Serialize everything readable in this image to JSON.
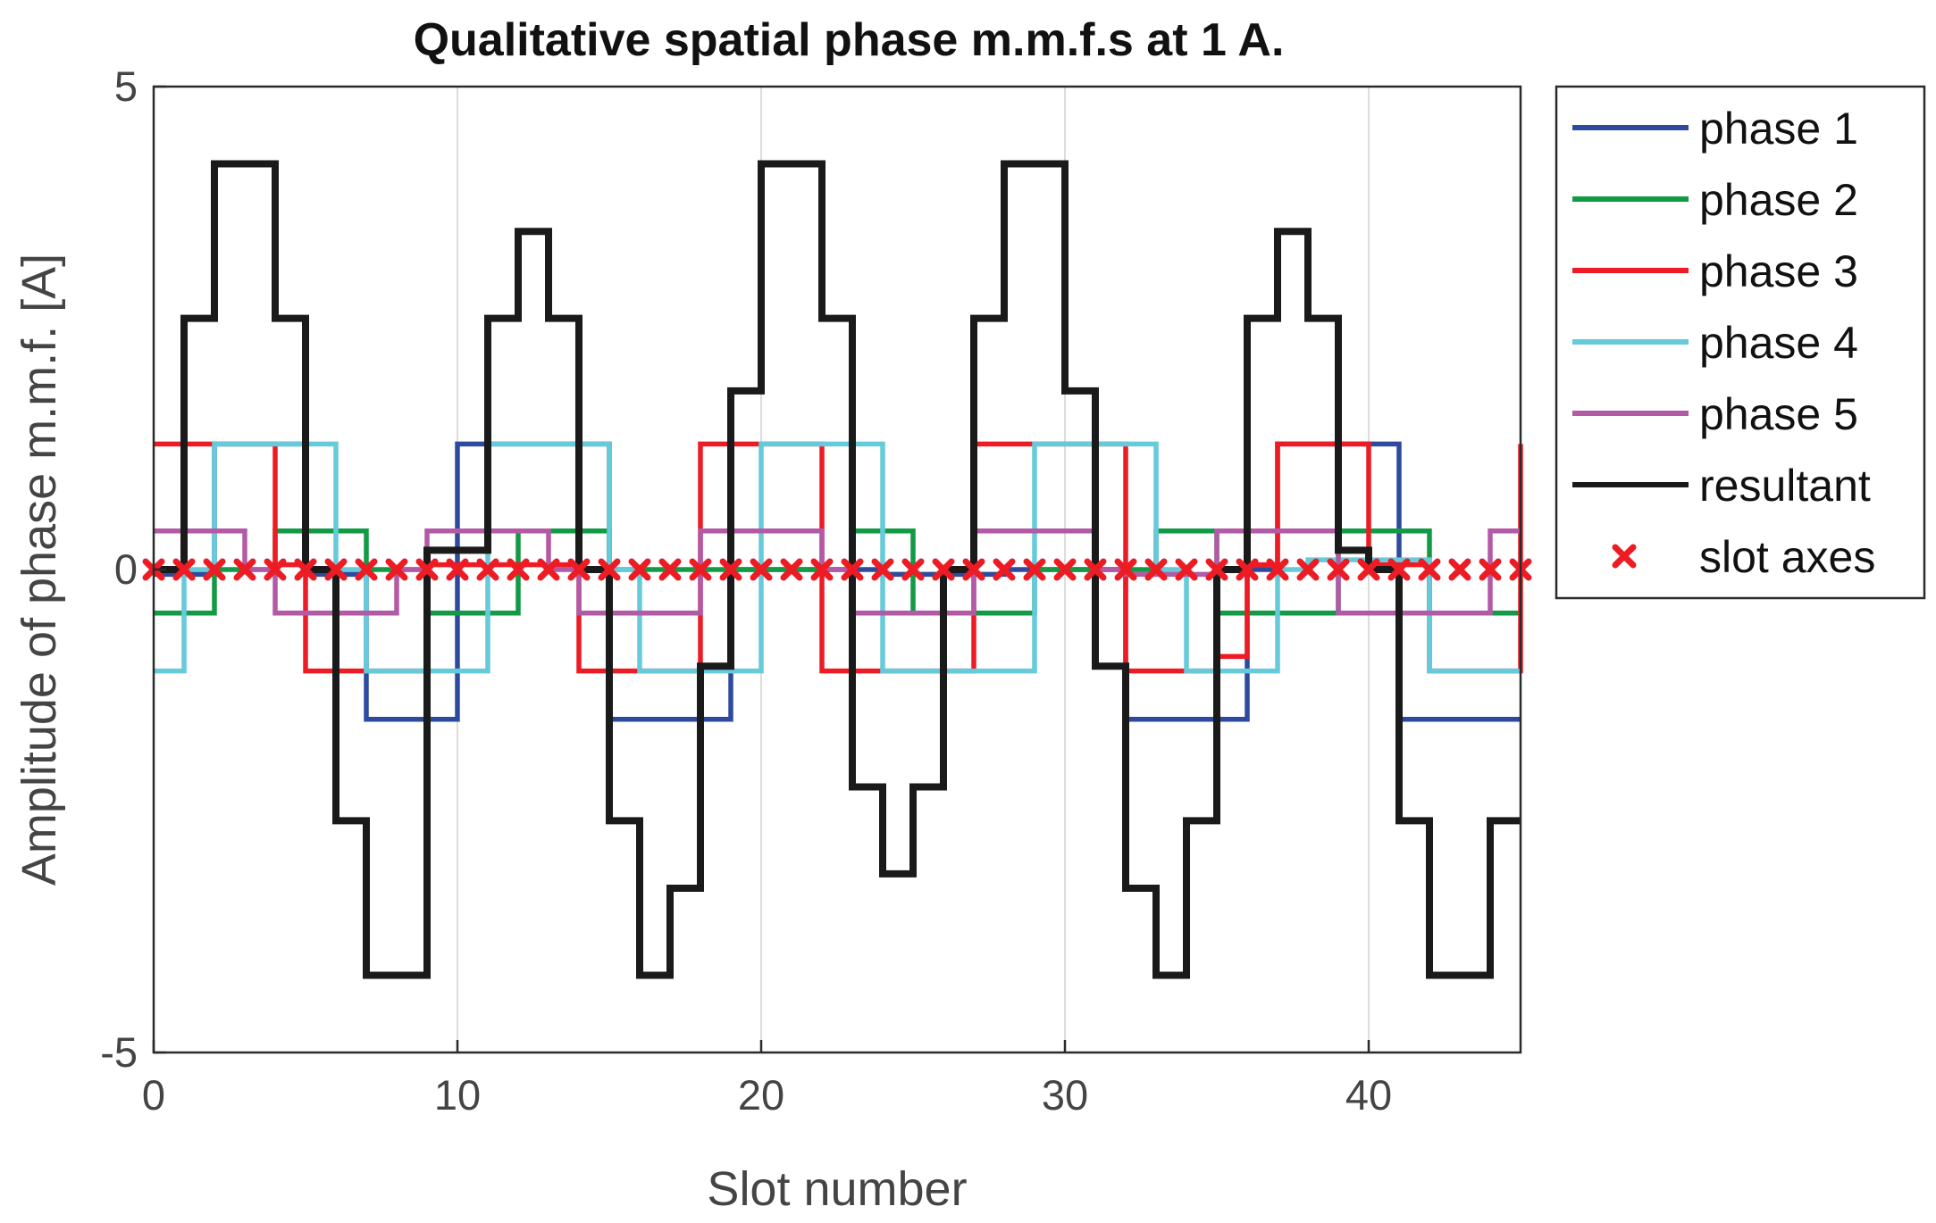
{
  "chart_data": {
    "type": "line",
    "title": "Qualitative spatial phase m.m.f.s at 1 A.",
    "xlabel": "Slot number",
    "ylabel": "Amplitude of phase m.m.f. [A]",
    "xlim": [
      0,
      45
    ],
    "ylim": [
      -5,
      5
    ],
    "xticks": [
      0,
      10,
      20,
      30,
      40
    ],
    "yticks": [
      -5,
      0,
      5
    ],
    "grid": "vertical",
    "legend_position": "outside-right",
    "step": "post",
    "x": [
      0,
      1,
      2,
      3,
      4,
      5,
      6,
      7,
      8,
      9,
      10,
      11,
      12,
      13,
      14,
      15,
      16,
      17,
      18,
      19,
      20,
      21,
      22,
      23,
      24,
      25,
      26,
      27,
      28,
      29,
      30,
      31,
      32,
      33,
      34,
      35,
      36,
      37,
      38,
      39,
      40,
      41,
      42,
      43,
      44,
      45
    ],
    "series": [
      {
        "name": "phase 1",
        "color": "#2e4a9e",
        "values": [
          -0.05,
          -0.05,
          1.3,
          1.3,
          1.3,
          -0.05,
          -0.05,
          -1.55,
          -1.55,
          -1.55,
          1.3,
          1.3,
          1.3,
          1.3,
          1.3,
          -1.55,
          -1.55,
          -1.55,
          -1.55,
          0,
          0,
          0,
          0,
          0,
          -0.05,
          -0.05,
          -0.05,
          -0.05,
          0,
          0,
          0,
          0,
          -1.55,
          -1.55,
          -1.55,
          -1.55,
          0,
          1.3,
          1.3,
          1.3,
          1.3,
          -1.55,
          -1.55,
          -1.55,
          -1.55,
          -1.55
        ]
      },
      {
        "name": "phase 2",
        "color": "#129a45",
        "values": [
          -0.45,
          -0.45,
          0,
          0,
          0.4,
          0.4,
          0.4,
          0,
          0,
          -0.45,
          -0.45,
          -0.45,
          0.4,
          0.4,
          0.4,
          0,
          0,
          0,
          0,
          0,
          0,
          0,
          0,
          0.4,
          0.4,
          -0.45,
          -0.45,
          -0.45,
          -0.45,
          0,
          0,
          0,
          0,
          0.4,
          0.4,
          -0.45,
          -0.45,
          -0.45,
          -0.45,
          0.4,
          0.4,
          0.4,
          -0.45,
          -0.45,
          -0.45,
          -0.45
        ]
      },
      {
        "name": "phase 3",
        "color": "#ed1c24",
        "values": [
          1.3,
          1.3,
          1.3,
          1.3,
          0.05,
          -1.05,
          -1.05,
          -1.05,
          -1.05,
          0.05,
          0.05,
          0.05,
          0.05,
          0.05,
          -1.05,
          -1.05,
          -1.05,
          -1.05,
          1.3,
          1.3,
          1.3,
          1.3,
          -1.05,
          -1.05,
          -1.05,
          -1.05,
          -1.05,
          1.3,
          1.3,
          1.3,
          1.3,
          1.3,
          -1.05,
          -1.05,
          -1.05,
          -0.9,
          0.05,
          1.3,
          1.3,
          1.3,
          0.05,
          0.05,
          -1.05,
          -1.05,
          -1.05,
          1.3
        ]
      },
      {
        "name": "phase 4",
        "color": "#66cadb",
        "values": [
          -1.05,
          0,
          1.3,
          1.3,
          1.3,
          1.3,
          0,
          -1.05,
          -1.05,
          -1.05,
          -1.05,
          1.3,
          1.3,
          1.3,
          1.3,
          0,
          -1.05,
          -1.05,
          -1.05,
          -1.05,
          1.3,
          1.3,
          1.3,
          1.3,
          -1.05,
          -1.05,
          -1.05,
          -1.05,
          -1.05,
          1.3,
          1.3,
          1.3,
          1.3,
          0,
          -1.05,
          -1.05,
          -1.05,
          0,
          0.1,
          0.1,
          0.1,
          0.1,
          -1.05,
          -1.05,
          -1.05,
          -1.05
        ]
      },
      {
        "name": "phase 5",
        "color": "#b35aa6",
        "values": [
          0.4,
          0.4,
          0.4,
          0,
          -0.45,
          -0.45,
          -0.45,
          -0.45,
          0,
          0.4,
          0.4,
          0.4,
          0.4,
          0,
          -0.45,
          -0.45,
          -0.45,
          -0.45,
          0.4,
          0.4,
          0.4,
          0.4,
          0,
          -0.45,
          -0.45,
          -0.45,
          -0.45,
          0.4,
          0.4,
          0.4,
          0.4,
          0,
          -0.05,
          -0.05,
          -0.05,
          0.4,
          0.4,
          0.4,
          0.4,
          -0.45,
          -0.45,
          -0.45,
          -0.45,
          -0.45,
          0.4,
          0.4
        ]
      },
      {
        "name": "resultant",
        "color": "#1a1a1a",
        "values": [
          0,
          2.6,
          4.2,
          4.2,
          2.6,
          0,
          -2.6,
          -4.2,
          -4.2,
          0.2,
          0.2,
          2.6,
          3.5,
          2.6,
          0,
          -2.6,
          -4.2,
          -3.3,
          -1,
          1.85,
          4.2,
          4.2,
          2.6,
          -2.25,
          -3.15,
          -2.25,
          0,
          2.6,
          4.2,
          4.2,
          1.85,
          -1,
          -3.3,
          -4.2,
          -2.6,
          0,
          2.6,
          3.5,
          2.6,
          0.2,
          0,
          -2.6,
          -4.2,
          -4.2,
          -2.6,
          -2.6
        ]
      },
      {
        "name": "slot axes",
        "color": "#ed1c24",
        "marker": "x",
        "x": [
          0,
          1,
          2,
          3,
          4,
          5,
          6,
          7,
          8,
          9,
          10,
          11,
          12,
          13,
          14,
          15,
          16,
          17,
          18,
          19,
          20,
          21,
          22,
          23,
          24,
          25,
          26,
          27,
          28,
          29,
          30,
          31,
          32,
          33,
          34,
          35,
          36,
          37,
          38,
          39,
          40,
          41,
          42,
          43,
          44,
          45
        ],
        "values": [
          0,
          0,
          0,
          0,
          0,
          0,
          0,
          0,
          0,
          0,
          0,
          0,
          0,
          0,
          0,
          0,
          0,
          0,
          0,
          0,
          0,
          0,
          0,
          0,
          0,
          0,
          0,
          0,
          0,
          0,
          0,
          0,
          0,
          0,
          0,
          0,
          0,
          0,
          0,
          0,
          0,
          0,
          0,
          0,
          0,
          0
        ]
      }
    ]
  }
}
